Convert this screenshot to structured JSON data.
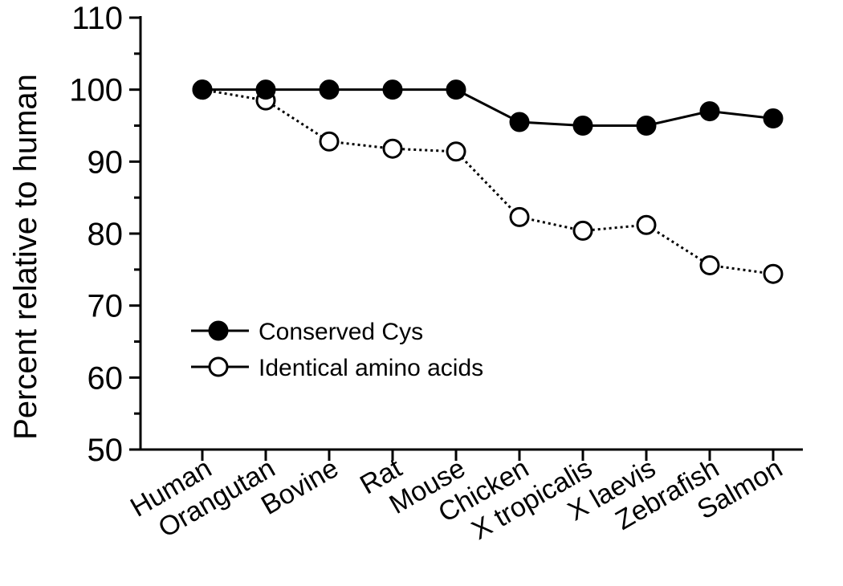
{
  "chart_data": {
    "type": "line",
    "title": "",
    "xlabel": "",
    "ylabel": "Percent relative to human",
    "ylim": [
      50,
      110
    ],
    "yticks": [
      50,
      60,
      70,
      80,
      90,
      100,
      110
    ],
    "grid": false,
    "legend_position": "center-left",
    "categories": [
      "Human",
      "Orangutan",
      "Bovine",
      "Rat",
      "Mouse",
      "Chicken",
      "X tropicalis",
      "X laevis",
      "Zebrafish",
      "Salmon"
    ],
    "series": [
      {
        "name": "Conserved Cys",
        "marker": "filled-circle",
        "line": "solid",
        "values": [
          100,
          100,
          100,
          100,
          100,
          95.5,
          95,
          95,
          97,
          96
        ]
      },
      {
        "name": "Identical amino acids",
        "marker": "open-circle",
        "line": "dotted",
        "values": [
          100,
          98.5,
          92.8,
          91.8,
          91.4,
          82.3,
          80.4,
          81.2,
          75.6,
          74.4
        ]
      }
    ]
  }
}
